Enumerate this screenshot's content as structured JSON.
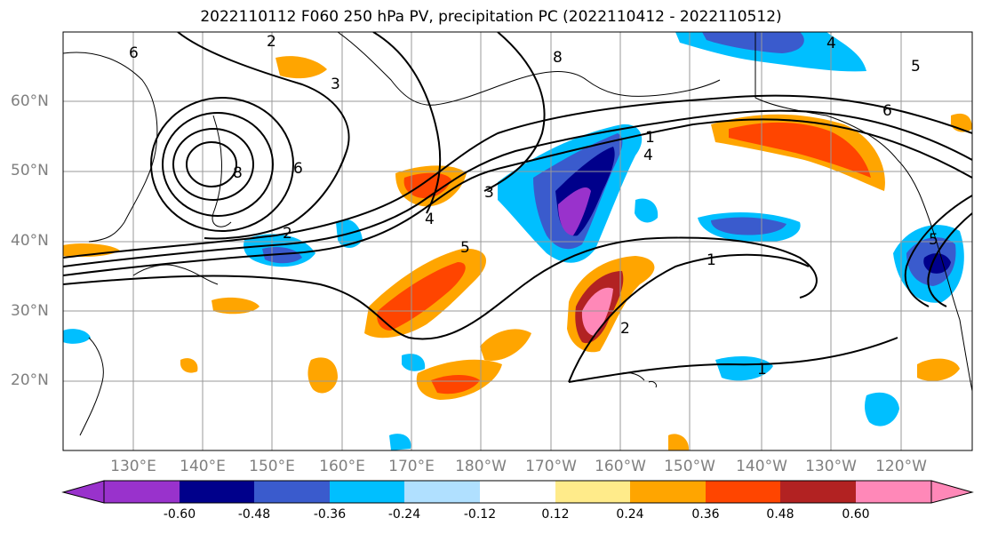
{
  "title": "2022110112 F060 250 hPa PV, precipitation PC (2022110412 - 2022110512)",
  "map": {
    "lat_labels": [
      "60°N",
      "50°N",
      "40°N",
      "30°N",
      "20°N"
    ],
    "lon_labels": [
      "130°E",
      "140°E",
      "150°E",
      "160°E",
      "170°E",
      "180°W",
      "170°W",
      "160°W",
      "150°W",
      "140°W",
      "130°W",
      "120°W"
    ],
    "pv_contour_labels": [
      "1",
      "1",
      "1",
      "2",
      "3",
      "4",
      "5",
      "6",
      "8",
      "2",
      "3",
      "4",
      "5",
      "6",
      "8",
      "2",
      "4",
      "5",
      "6"
    ],
    "coastline_color": "#000000",
    "contour_color": "#000000",
    "grid_color": "#999999"
  },
  "colorbar": {
    "tick_labels": [
      "-0.60",
      "-0.48",
      "-0.36",
      "-0.24",
      "-0.12",
      "0.12",
      "0.24",
      "0.36",
      "0.48",
      "0.60"
    ],
    "colors": [
      "#9932cc",
      "#00008b",
      "#3a5bcd",
      "#00bfff",
      "#b0e0ff",
      "#ffffff",
      "#ffeb8a",
      "#ffa500",
      "#ff4500",
      "#b22222",
      "#ff88b8"
    ]
  }
}
